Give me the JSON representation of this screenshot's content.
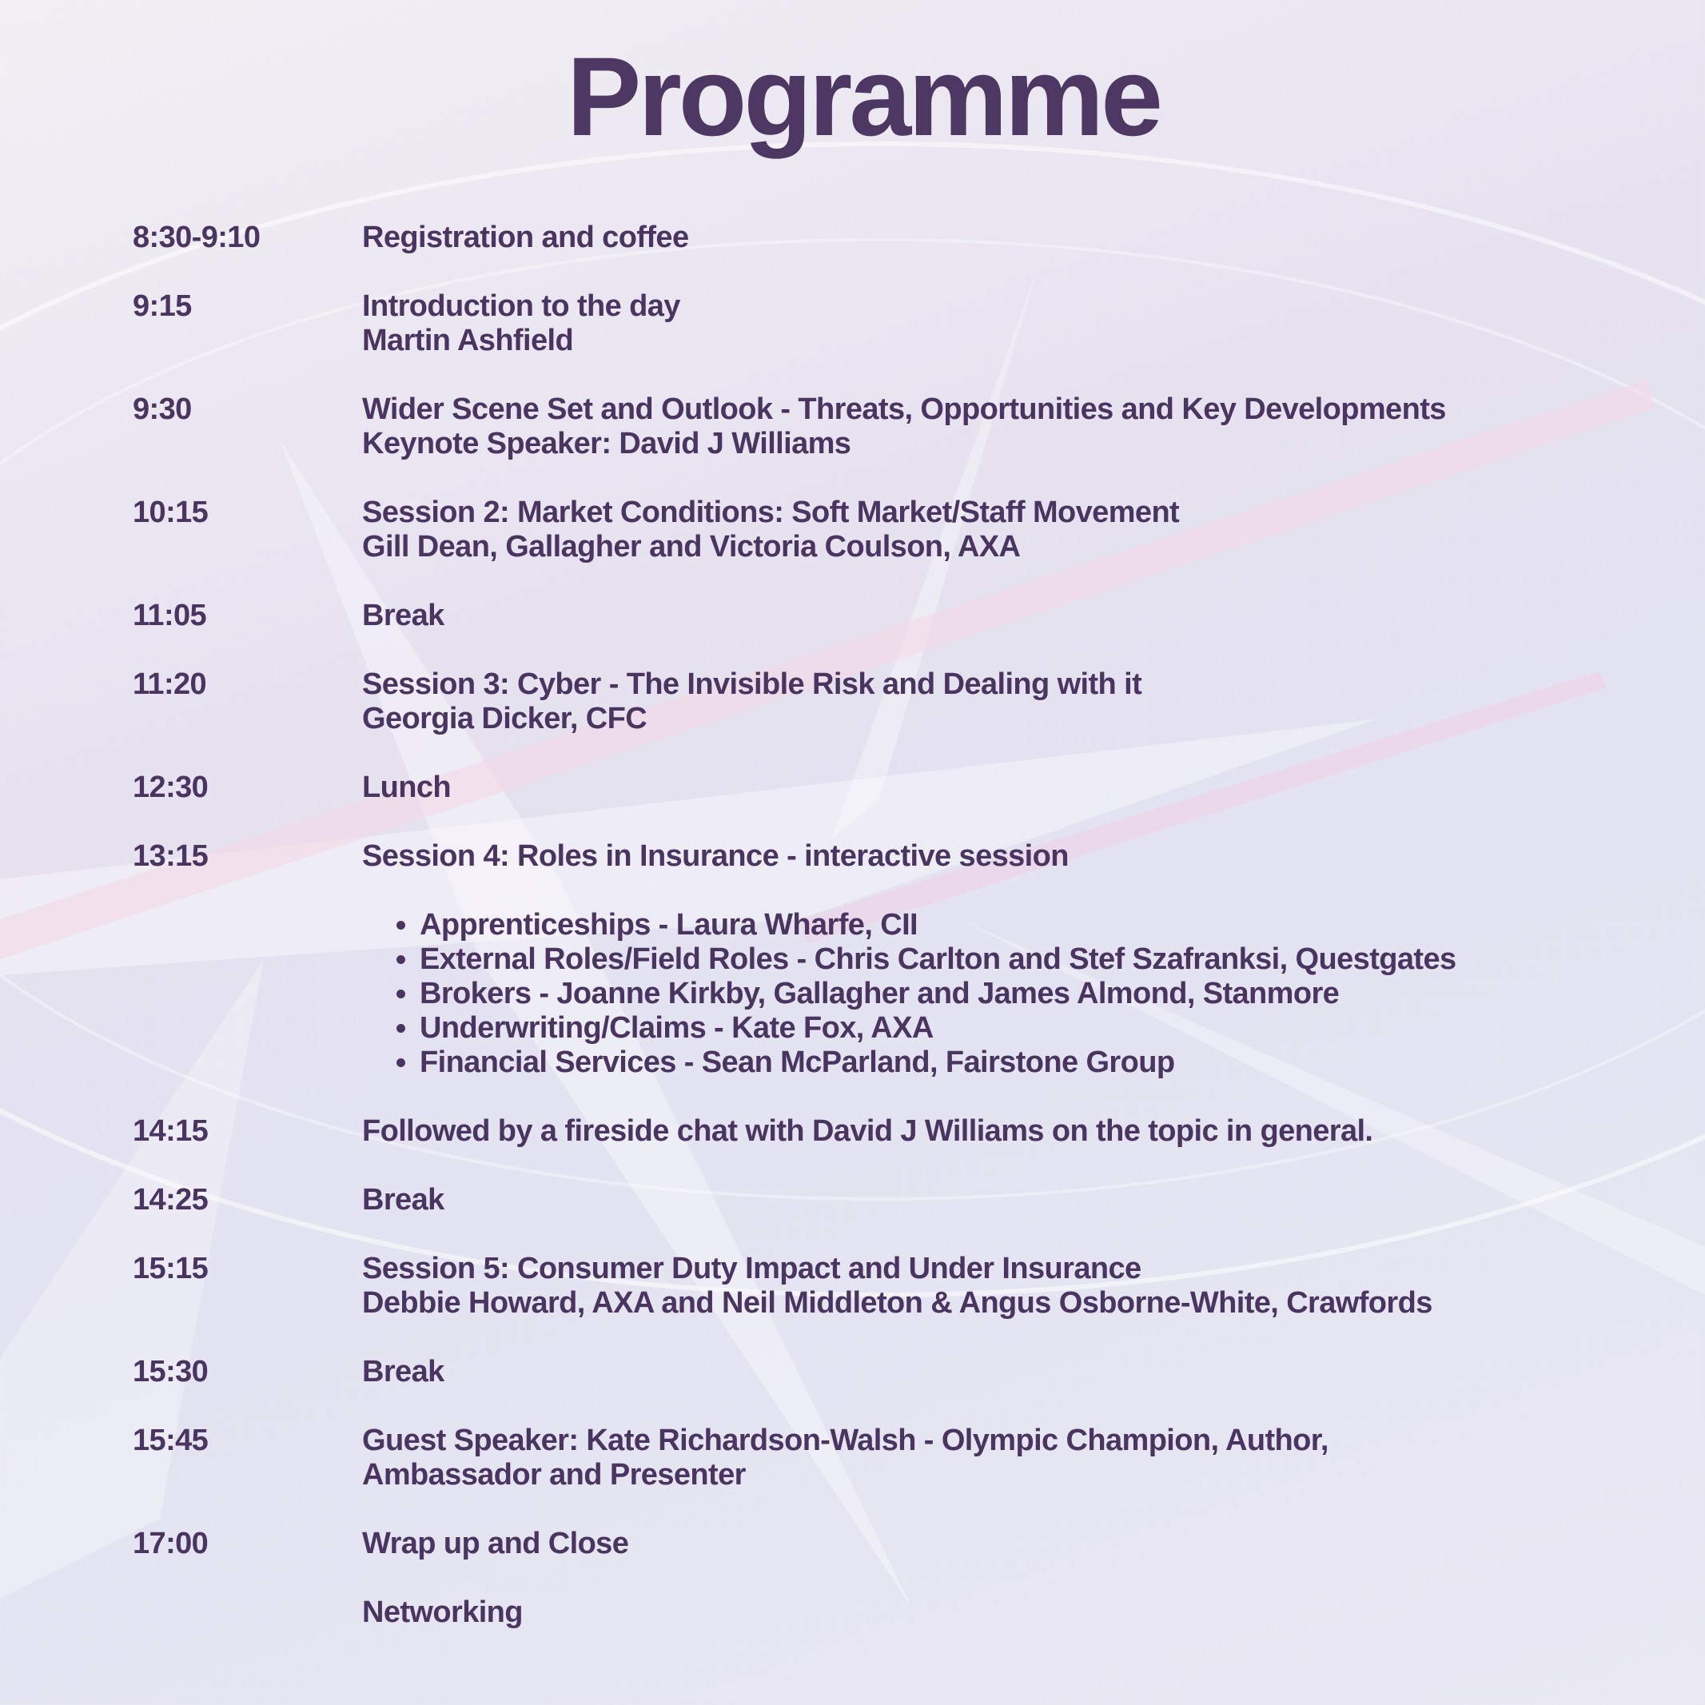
{
  "title": "Programme",
  "colors": {
    "text": "#4a3560",
    "background": "#e6e2f0"
  },
  "entries": [
    {
      "time": "8:30-9:10",
      "lines": [
        "Registration and coffee"
      ]
    },
    {
      "time": "9:15",
      "lines": [
        "Introduction to the day",
        "Martin Ashfield"
      ]
    },
    {
      "time": "9:30",
      "lines": [
        "Wider Scene Set and Outlook - Threats, Opportunities and Key Developments",
        "Keynote Speaker: David J Williams"
      ]
    },
    {
      "time": "10:15",
      "lines": [
        "Session 2: Market Conditions: Soft Market/Staff Movement",
        "Gill Dean, Gallagher and Victoria Coulson, AXA"
      ]
    },
    {
      "time": "11:05",
      "lines": [
        "Break"
      ]
    },
    {
      "time": "11:20",
      "lines": [
        "Session 3: Cyber - The Invisible Risk and Dealing with it",
        "Georgia Dicker, CFC"
      ]
    },
    {
      "time": "12:30",
      "lines": [
        "Lunch"
      ]
    },
    {
      "time": "13:15",
      "lines": [
        "Session 4: Roles in Insurance - interactive session"
      ],
      "bullets": [
        "Apprenticeships - Laura Wharfe, CII",
        "External Roles/Field Roles - Chris Carlton and Stef Szafranksi, Questgates",
        "Brokers - Joanne Kirkby, Gallagher and James Almond, Stanmore",
        "Underwriting/Claims - Kate Fox, AXA",
        "Financial Services - Sean McParland, Fairstone Group"
      ]
    },
    {
      "time": "14:15",
      "lines": [
        "Followed by a fireside chat with David J Williams on the topic in general."
      ]
    },
    {
      "time": "14:25",
      "lines": [
        "Break"
      ]
    },
    {
      "time": "15:15",
      "lines": [
        "Session 5: Consumer Duty Impact and Under Insurance",
        "Debbie Howard, AXA and Neil Middleton & Angus Osborne-White, Crawfords"
      ]
    },
    {
      "time": "15:30",
      "lines": [
        "Break"
      ]
    },
    {
      "time": "15:45",
      "lines": [
        "Guest Speaker: Kate Richardson-Walsh - Olympic Champion, Author,",
        "Ambassador and Presenter"
      ]
    },
    {
      "time": "17:00",
      "lines": [
        "Wrap up and Close"
      ]
    },
    {
      "time": "",
      "lines": [
        "Networking"
      ]
    }
  ]
}
